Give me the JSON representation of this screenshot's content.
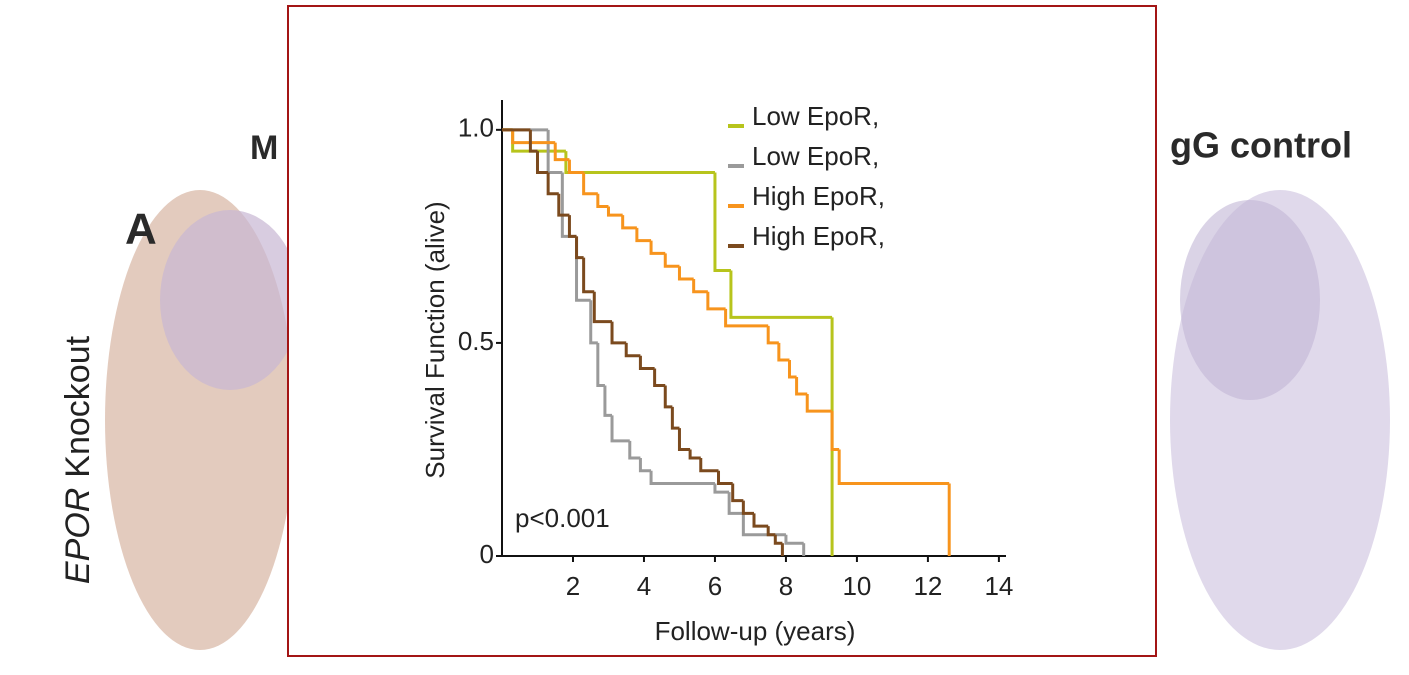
{
  "background": {
    "left_heading": "M",
    "right_heading": "gG control",
    "panel_letter": "A",
    "row_label_italic": "EPOR",
    "row_label": "Knockout"
  },
  "chart_data": {
    "type": "step",
    "xlabel": "Follow-up (years)",
    "ylabel": "Survival Function (alive)",
    "annotation": "p<0.001",
    "xlim": [
      0,
      14.2
    ],
    "ylim": [
      0,
      1.07
    ],
    "xticks": [
      2,
      4,
      6,
      8,
      10,
      12,
      14
    ],
    "yticks": [
      0,
      0.5,
      {
        "value": 1,
        "label": "1.0"
      }
    ],
    "series": [
      {
        "name": "Low EpoR,",
        "color": "#b7c41c",
        "x": [
          0,
          0.3,
          1.8,
          6.0,
          6.45,
          9.3
        ],
        "values": [
          1.0,
          0.95,
          0.9,
          0.67,
          0.56,
          0
        ]
      },
      {
        "name": "Low EpoR,",
        "color": "#9a9a9a",
        "x": [
          0,
          1.3,
          1.7,
          2.1,
          2.5,
          2.7,
          2.9,
          3.1,
          3.6,
          3.9,
          4.2,
          6.0,
          6.4,
          6.8,
          8.0,
          8.5
        ],
        "values": [
          1.0,
          0.9,
          0.75,
          0.6,
          0.5,
          0.4,
          0.33,
          0.27,
          0.23,
          0.2,
          0.17,
          0.15,
          0.1,
          0.05,
          0.03,
          0
        ]
      },
      {
        "name": "High EpoR,",
        "color": "#f7941d",
        "x": [
          0,
          0.3,
          1.5,
          1.9,
          2.3,
          2.7,
          3.0,
          3.4,
          3.8,
          4.2,
          4.6,
          5.0,
          5.4,
          5.8,
          6.3,
          7.5,
          7.8,
          8.1,
          8.3,
          8.6,
          9.3,
          9.5,
          12.6
        ],
        "values": [
          1.0,
          0.97,
          0.93,
          0.9,
          0.85,
          0.82,
          0.8,
          0.77,
          0.74,
          0.71,
          0.68,
          0.65,
          0.62,
          0.58,
          0.54,
          0.5,
          0.46,
          0.42,
          0.38,
          0.34,
          0.25,
          0.17,
          0
        ]
      },
      {
        "name": "High EpoR,",
        "color": "#7b4a1e",
        "x": [
          0,
          0.8,
          1.0,
          1.3,
          1.6,
          1.9,
          2.1,
          2.3,
          2.6,
          3.1,
          3.5,
          3.9,
          4.3,
          4.6,
          4.8,
          5.0,
          5.3,
          5.6,
          6.1,
          6.5,
          6.8,
          7.1,
          7.5,
          7.7,
          7.9
        ],
        "values": [
          1.0,
          0.95,
          0.9,
          0.85,
          0.8,
          0.75,
          0.7,
          0.62,
          0.55,
          0.5,
          0.47,
          0.44,
          0.4,
          0.35,
          0.3,
          0.25,
          0.23,
          0.2,
          0.17,
          0.13,
          0.1,
          0.07,
          0.05,
          0.03,
          0
        ]
      }
    ]
  }
}
